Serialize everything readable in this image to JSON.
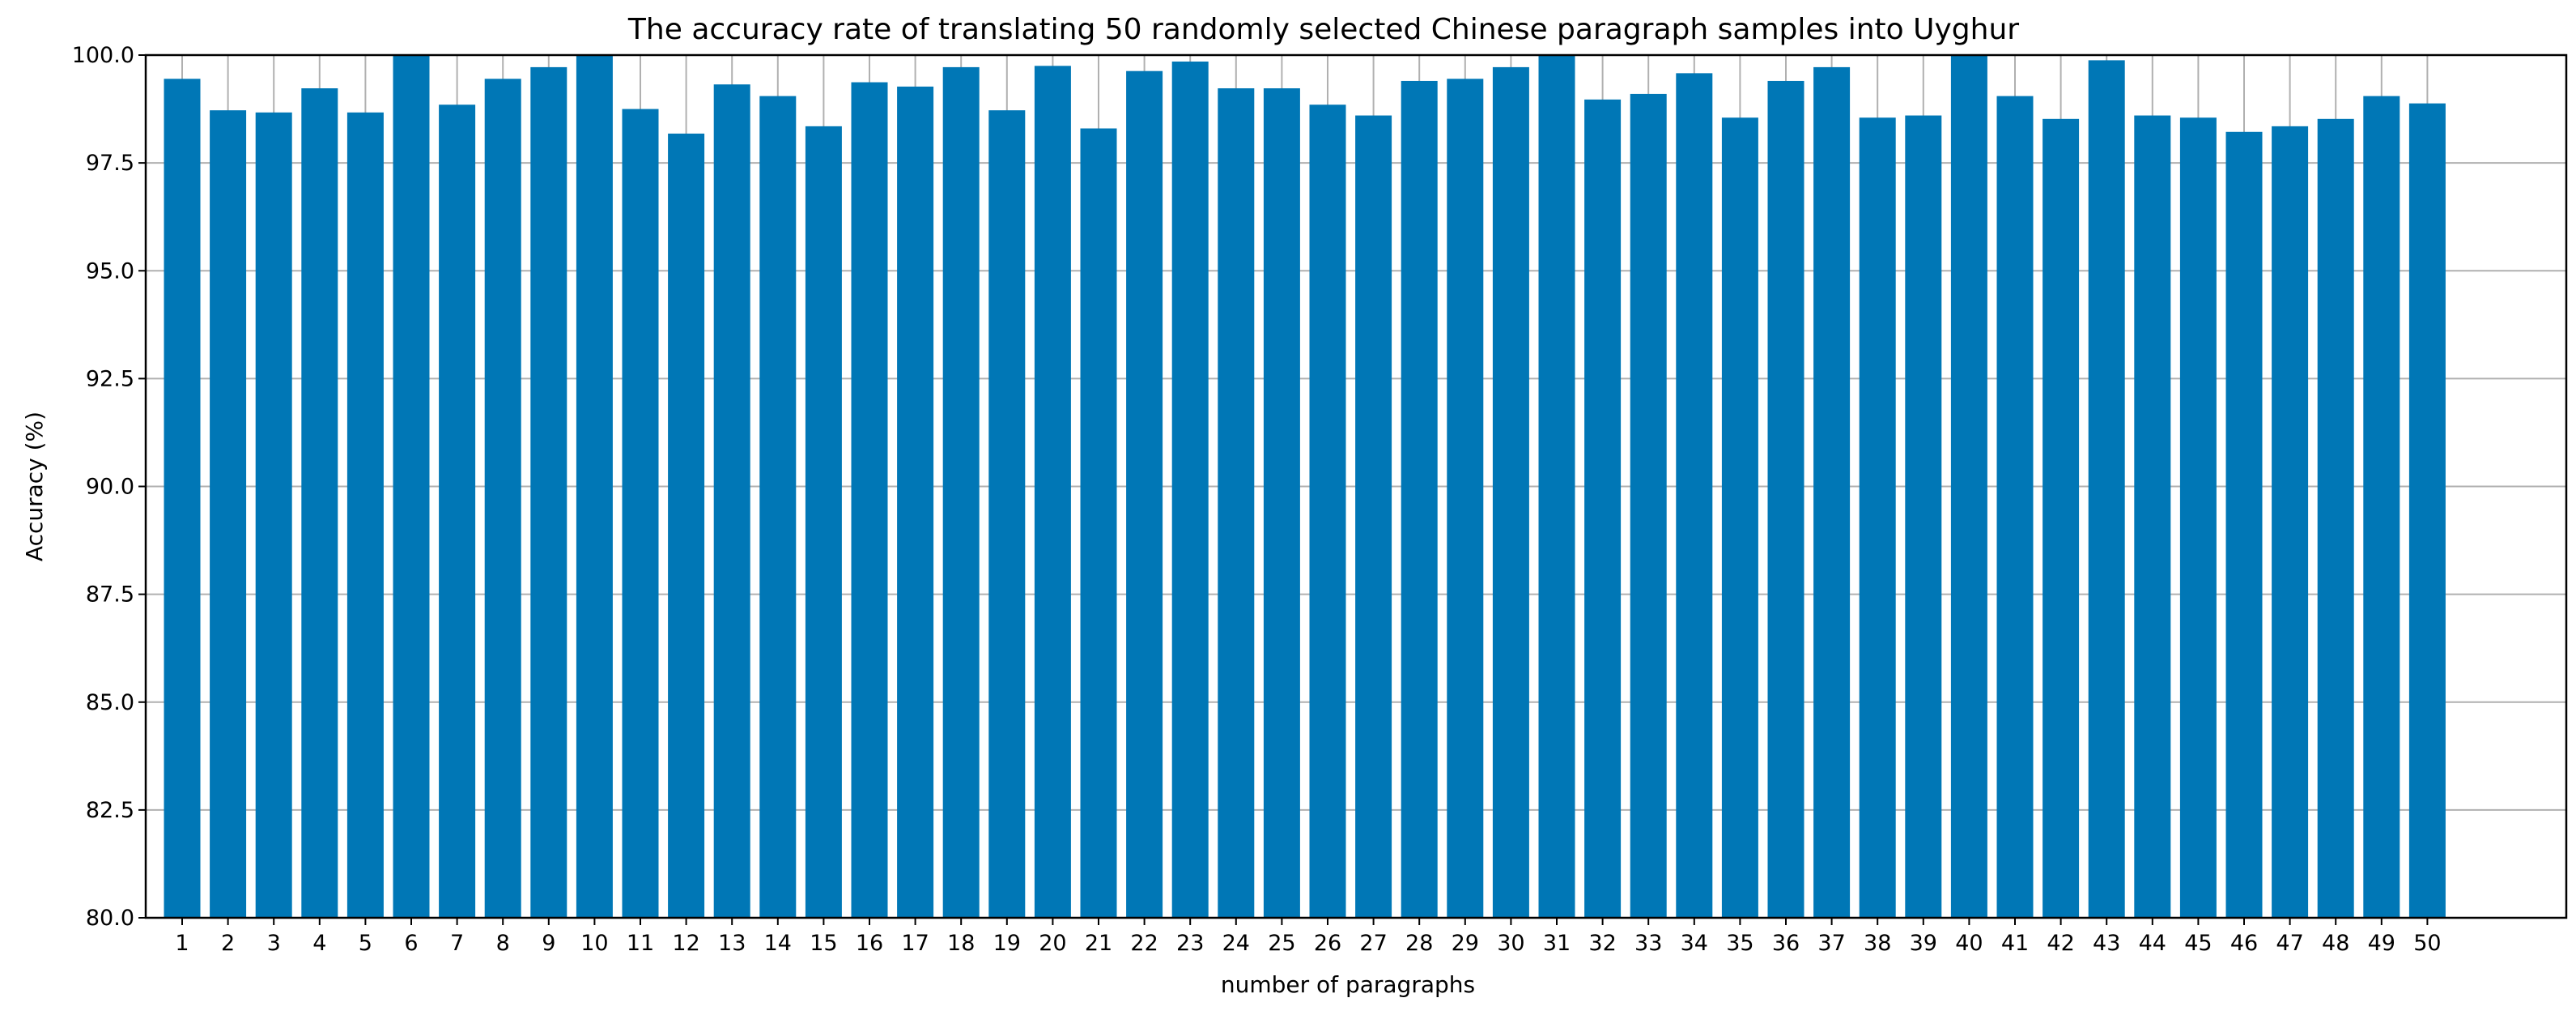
{
  "colors": {
    "bar": "#0077b6",
    "grid": "#b0b0b0",
    "axis": "#000000",
    "background": "#ffffff"
  },
  "chart_data": {
    "type": "bar",
    "title": "The accuracy rate of translating 50 randomly selected Chinese paragraph samples into Uyghur",
    "xlabel": "number of paragraphs",
    "ylabel": "Accuracy (%)",
    "ylim": [
      80.0,
      100.0
    ],
    "yticks": [
      "80.0",
      "82.5",
      "85.0",
      "87.5",
      "90.0",
      "92.5",
      "95.0",
      "97.5",
      "100.0"
    ],
    "grid": true,
    "categories": [
      "1",
      "2",
      "3",
      "4",
      "5",
      "6",
      "7",
      "8",
      "9",
      "10",
      "11",
      "12",
      "13",
      "14",
      "15",
      "16",
      "17",
      "18",
      "19",
      "20",
      "21",
      "22",
      "23",
      "24",
      "25",
      "26",
      "27",
      "28",
      "29",
      "30",
      "31",
      "32",
      "33",
      "34",
      "35",
      "36",
      "37",
      "38",
      "39",
      "40",
      "41",
      "42",
      "43",
      "44",
      "45",
      "46",
      "47",
      "48",
      "49",
      "50"
    ],
    "values": [
      99.45,
      98.72,
      98.67,
      99.23,
      98.67,
      100.0,
      98.85,
      99.45,
      99.72,
      100.0,
      98.75,
      98.18,
      99.32,
      99.05,
      98.35,
      99.37,
      99.27,
      99.72,
      98.72,
      99.75,
      98.3,
      99.63,
      99.85,
      99.23,
      99.23,
      98.85,
      98.6,
      99.4,
      99.45,
      99.72,
      100.0,
      98.97,
      99.1,
      99.58,
      98.55,
      99.4,
      99.72,
      98.55,
      98.6,
      100.0,
      99.05,
      98.52,
      99.88,
      98.6,
      98.55,
      98.22,
      98.35,
      98.52,
      99.05,
      98.88
    ]
  }
}
